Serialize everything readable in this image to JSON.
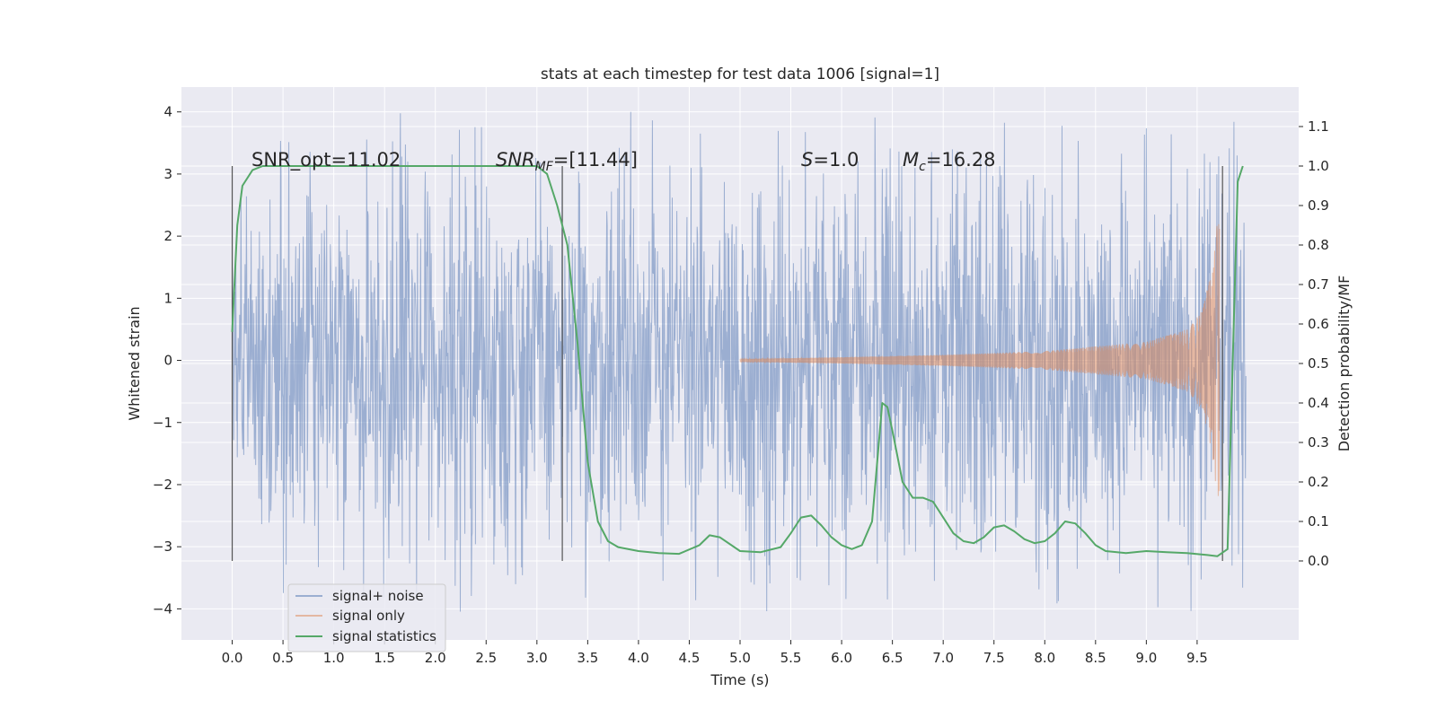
{
  "chart_data": {
    "type": "line",
    "title": "stats at each timestep for test data 1006 [signal=1]",
    "xlabel": "Time (s)",
    "ylabel_left": "Whitened strain",
    "ylabel_right": "Detection probability/MF",
    "xlim": [
      -0.5,
      10.5
    ],
    "ylim_left": [
      -4.5,
      4.4
    ],
    "ylim_right": [
      -0.2,
      1.2
    ],
    "x_ticks": [
      "0.0",
      "0.5",
      "1.0",
      "1.5",
      "2.0",
      "2.5",
      "3.0",
      "3.5",
      "4.0",
      "4.5",
      "5.0",
      "5.5",
      "6.0",
      "6.5",
      "7.0",
      "7.5",
      "8.0",
      "8.5",
      "9.0",
      "9.5"
    ],
    "y_left_ticks": [
      "4",
      "3",
      "2",
      "1",
      "0",
      "−1",
      "−2",
      "−3",
      "−4"
    ],
    "y_right_ticks": [
      "1.1",
      "1.0",
      "0.9",
      "0.8",
      "0.7",
      "0.6",
      "0.5",
      "0.4",
      "0.3",
      "0.2",
      "0.1",
      "0.0"
    ],
    "grid": true,
    "legend_position": "lower-left",
    "series": [
      {
        "name": "signal+ noise",
        "color": "#4c72b0",
        "axis": "left",
        "x_range": [
          0.0,
          9.98
        ],
        "amplitude_typical": 1.4,
        "amplitude_max": 4.05
      },
      {
        "name": "signal only",
        "color": "#dd8452",
        "axis": "left",
        "x_range": [
          5.0,
          9.72
        ],
        "envelope": [
          [
            5.0,
            0.02
          ],
          [
            6.0,
            0.05
          ],
          [
            7.0,
            0.09
          ],
          [
            8.0,
            0.15
          ],
          [
            9.0,
            0.3
          ],
          [
            9.4,
            0.5
          ],
          [
            9.55,
            0.8
          ],
          [
            9.65,
            1.5
          ],
          [
            9.7,
            2.3
          ]
        ]
      },
      {
        "name": "signal statistics",
        "color": "#55a868",
        "axis": "right",
        "x": [
          0.0,
          0.05,
          0.1,
          0.2,
          0.3,
          0.5,
          1.0,
          2.0,
          3.0,
          3.1,
          3.2,
          3.3,
          3.4,
          3.5,
          3.6,
          3.7,
          3.8,
          4.0,
          4.2,
          4.4,
          4.6,
          4.7,
          4.8,
          5.0,
          5.2,
          5.4,
          5.5,
          5.6,
          5.7,
          5.8,
          5.9,
          6.0,
          6.1,
          6.2,
          6.3,
          6.35,
          6.4,
          6.45,
          6.5,
          6.6,
          6.7,
          6.8,
          6.9,
          7.0,
          7.1,
          7.2,
          7.3,
          7.4,
          7.5,
          7.6,
          7.7,
          7.8,
          7.9,
          8.0,
          8.1,
          8.2,
          8.3,
          8.4,
          8.5,
          8.6,
          8.8,
          9.0,
          9.2,
          9.4,
          9.6,
          9.7,
          9.8,
          9.85,
          9.9,
          9.95
        ],
        "y": [
          0.58,
          0.85,
          0.95,
          0.99,
          1.0,
          1.0,
          1.0,
          1.0,
          1.0,
          0.98,
          0.9,
          0.8,
          0.55,
          0.25,
          0.1,
          0.05,
          0.035,
          0.025,
          0.02,
          0.018,
          0.04,
          0.065,
          0.06,
          0.025,
          0.022,
          0.035,
          0.07,
          0.11,
          0.115,
          0.09,
          0.06,
          0.04,
          0.03,
          0.04,
          0.1,
          0.25,
          0.4,
          0.39,
          0.33,
          0.2,
          0.16,
          0.16,
          0.15,
          0.11,
          0.07,
          0.05,
          0.045,
          0.06,
          0.085,
          0.09,
          0.075,
          0.055,
          0.045,
          0.05,
          0.07,
          0.1,
          0.095,
          0.07,
          0.04,
          0.025,
          0.02,
          0.025,
          0.022,
          0.02,
          0.015,
          0.012,
          0.03,
          0.5,
          0.96,
          1.0
        ]
      }
    ],
    "vlines": [
      0.0,
      3.25,
      9.75
    ],
    "annotations": {
      "snr_opt": "SNR_opt=11.02",
      "snr_mf_base": "SNR",
      "snr_mf_sub": "MF",
      "snr_mf_value": "=[11.44]",
      "s_var": "S",
      "s_value": "=1.0",
      "mc_var": "M",
      "mc_sub": "c",
      "mc_value": "=16.28"
    }
  }
}
